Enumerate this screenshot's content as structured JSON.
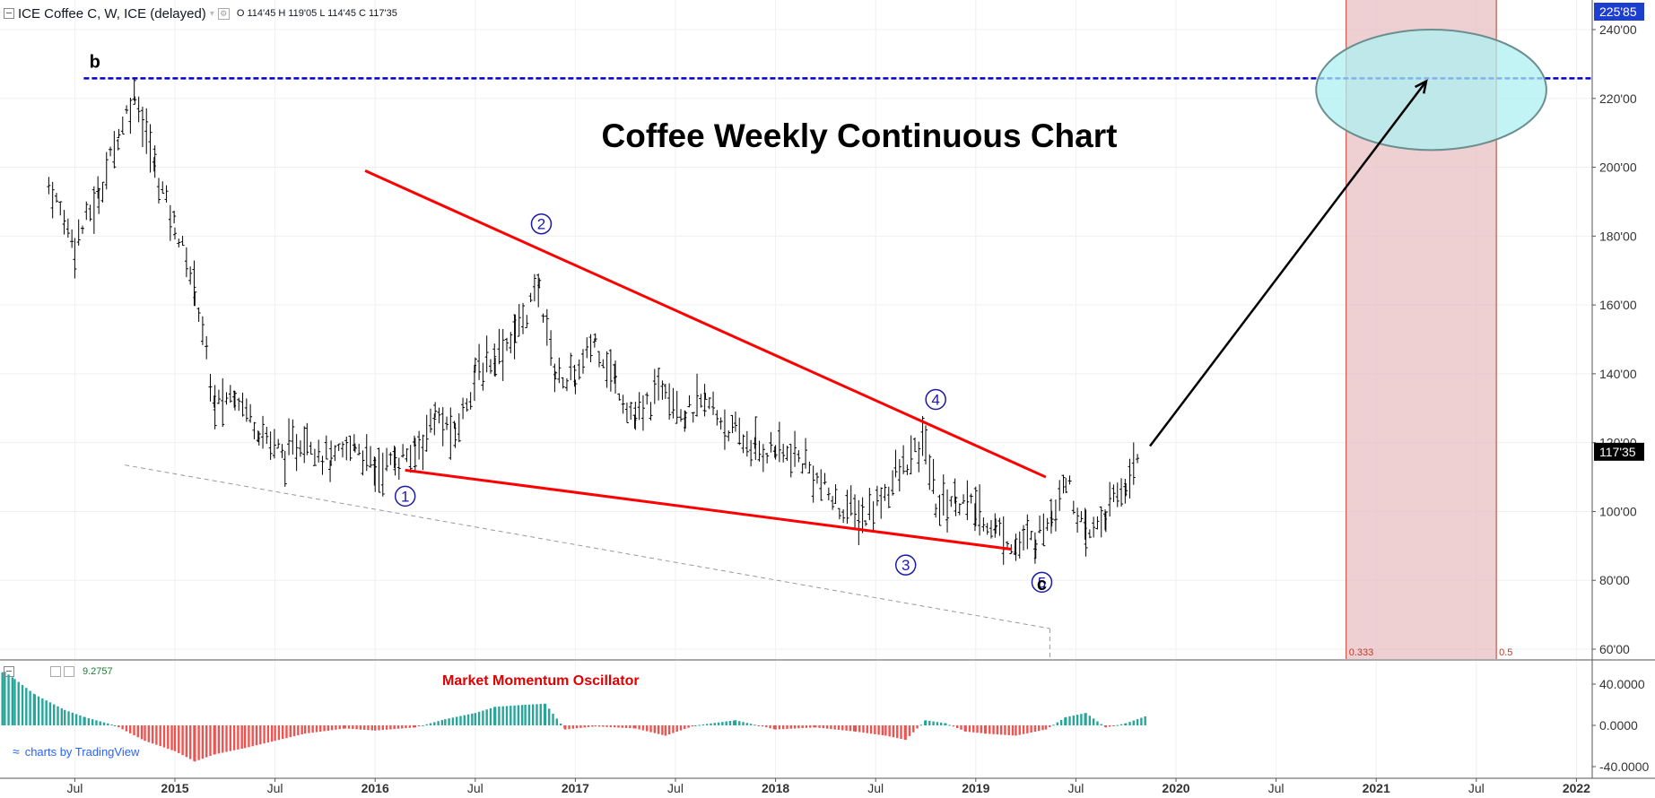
{
  "header": {
    "symbol": "ICE Coffee C, W, ICE (delayed)",
    "ohlc": "O 114'45  H 119'05  L 114'45  C 117'35"
  },
  "indicator_header": {
    "value": "9.2757"
  },
  "watermark": {
    "text": "charts by TradingView"
  },
  "colors": {
    "bullish": "#26a69a",
    "bearish": "#ef5350",
    "trendline": "#ff0000",
    "wave_label": "#1a1aa6",
    "target_line": "#0000cc",
    "target_ellipse": "#aef0f2",
    "fib_zone": "#e8bfc3",
    "price_tag": "#1c3fd0"
  },
  "chart_data": [
    {
      "type": "ohlc",
      "title": "Coffee Weekly Continuous Chart",
      "x_ticks": [
        "Jul",
        "2015",
        "Jul",
        "2016",
        "Jul",
        "2017",
        "Jul",
        "2018",
        "Jul",
        "2019",
        "Jul",
        "2020",
        "Jul",
        "2021",
        "Jul",
        "2022"
      ],
      "y_ticks": [
        "240'00",
        "220'00",
        "200'00",
        "180'00",
        "160'00",
        "140'00",
        "120'00",
        "100'00",
        "80'00",
        "60'00"
      ],
      "ylim": [
        58,
        244
      ],
      "current_price_label": "117'35",
      "target_price_label": "225'85",
      "series": [
        {
          "x": [
            2014.37,
            2014.5,
            2014.62,
            2014.72,
            2014.8,
            2014.9,
            2015.0,
            2015.1,
            2015.2,
            2015.3,
            2015.42,
            2015.55,
            2015.66,
            2015.78,
            2015.9,
            2016.0,
            2016.1,
            2016.2,
            2016.3,
            2016.4,
            2016.5,
            2016.6,
            2016.7,
            2016.82,
            2016.9,
            2017.0,
            2017.1,
            2017.2,
            2017.3,
            2017.45,
            2017.55,
            2017.65,
            2017.8,
            2017.9,
            2018.0,
            2018.15,
            2018.3,
            2018.45,
            2018.6,
            2018.75,
            2018.8,
            2018.9,
            2019.0,
            2019.1,
            2019.2,
            2019.3,
            2019.38,
            2019.45,
            2019.55,
            2019.65,
            2019.75,
            2019.82
          ],
          "values": [
            195,
            178,
            192,
            210,
            222,
            200,
            183,
            165,
            130,
            135,
            124,
            116,
            122,
            114,
            120,
            112,
            115,
            117,
            128,
            122,
            140,
            145,
            152,
            165,
            140,
            138,
            150,
            138,
            126,
            138,
            128,
            132,
            122,
            118,
            118,
            114,
            102,
            98,
            110,
            120,
            102,
            104,
            100,
            95,
            90,
            92,
            100,
            110,
            92,
            99,
            108,
            117
          ]
        }
      ],
      "annotations": {
        "wave_labels": [
          {
            "text": "b",
            "x": 2014.6,
            "y": 226
          },
          {
            "text": "1",
            "x": 2016.15,
            "y": 112
          },
          {
            "text": "2",
            "x": 2016.83,
            "y": 176
          },
          {
            "text": "3",
            "x": 2018.65,
            "y": 92
          },
          {
            "text": "4",
            "x": 2018.8,
            "y": 125
          },
          {
            "text": "5",
            "x": 2019.33,
            "y": 87
          },
          {
            "text": "c",
            "x": 2019.33,
            "y": 80
          }
        ],
        "trendlines": [
          {
            "from": [
              2015.95,
              199
            ],
            "to": [
              2019.35,
              110
            ]
          },
          {
            "from": [
              2016.15,
              112
            ],
            "to": [
              2019.18,
              89
            ]
          }
        ],
        "dashed_line": {
          "from": [
            2014.75,
            113.5
          ],
          "to": [
            2019.37,
            66
          ]
        },
        "target_level": 225.85,
        "target_zone": {
          "x": [
            2020.7,
            2021.85
          ],
          "y": [
            205,
            240
          ]
        },
        "projection_arrow": {
          "from": [
            2019.87,
            119
          ],
          "to": [
            2021.25,
            225
          ]
        },
        "fib_zone": {
          "x": [
            2020.85,
            2021.6
          ],
          "labels": [
            "0.333",
            "0.5"
          ]
        }
      }
    },
    {
      "type": "histogram",
      "title": "Market Momentum Oscillator",
      "y_ticks": [
        "40.0000",
        "0.0000",
        "-40.0000"
      ],
      "ylim": [
        -45,
        55
      ],
      "series": [
        {
          "name": "Market Momentum Oscillator",
          "x": [
            2014.0,
            2014.1,
            2014.15,
            2014.2,
            2014.3,
            2014.45,
            2014.55,
            2014.7,
            2014.85,
            2015.0,
            2015.1,
            2015.2,
            2015.35,
            2015.5,
            2015.65,
            2015.85,
            2016.0,
            2016.2,
            2016.35,
            2016.5,
            2016.6,
            2016.75,
            2016.85,
            2016.95,
            2017.1,
            2017.3,
            2017.45,
            2017.6,
            2017.8,
            2018.0,
            2018.2,
            2018.4,
            2018.55,
            2018.65,
            2018.75,
            2018.85,
            2018.95,
            2019.05,
            2019.2,
            2019.35,
            2019.45,
            2019.55,
            2019.65,
            2019.75,
            2019.85
          ],
          "values": [
            40,
            50,
            52,
            45,
            30,
            15,
            8,
            0,
            -15,
            -25,
            -35,
            -28,
            -22,
            -15,
            -8,
            -3,
            -5,
            -2,
            6,
            12,
            18,
            20,
            21,
            -4,
            -1,
            -3,
            -10,
            0,
            5,
            -4,
            -2,
            -6,
            -10,
            -14,
            5,
            2,
            -6,
            -8,
            -10,
            -4,
            8,
            12,
            -2,
            2,
            9
          ]
        }
      ]
    }
  ]
}
